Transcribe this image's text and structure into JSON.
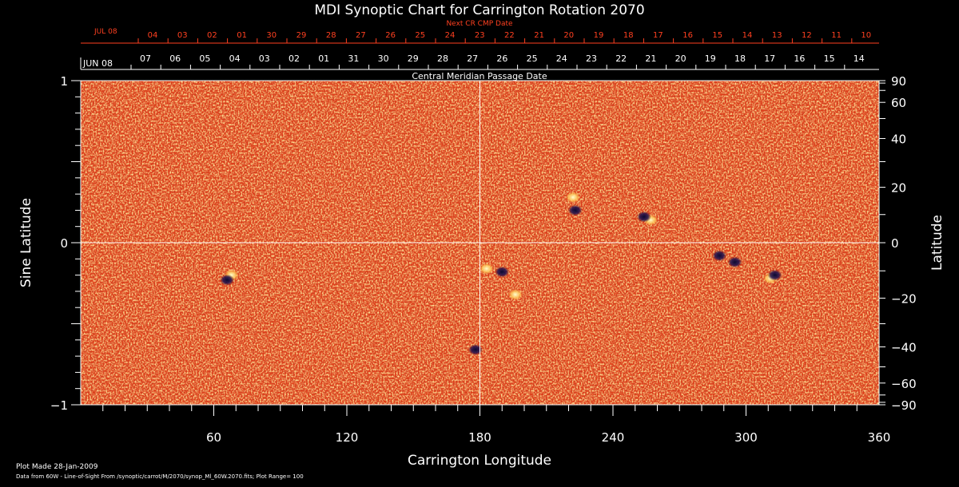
{
  "chart_data": {
    "type": "heatmap",
    "title": "MDI Synoptic Chart for Carrington Rotation 2070",
    "xlabel": "Carrington Longitude",
    "ylabel_left": "Sine Latitude",
    "ylabel_right": "Latitude",
    "top_axis_label": "Central Meridian Passage Date",
    "next_cr_label": "Next CR CMP Date",
    "xlim": [
      0,
      360
    ],
    "ylim": [
      -1,
      1
    ],
    "x_ticks": [
      60,
      120,
      180,
      240,
      300,
      360
    ],
    "y_ticks_left": [
      {
        "value": 1,
        "label": "1"
      },
      {
        "value": 0,
        "label": "0"
      },
      {
        "value": -1,
        "label": "−1"
      }
    ],
    "y_ticks_right": [
      90,
      60,
      40,
      20,
      0,
      -20,
      -40,
      -60,
      -90
    ],
    "y_ticks_right_labels": [
      "90",
      "60",
      "40",
      "20",
      "0",
      "−20",
      "−40",
      "−60",
      "−90"
    ],
    "cmp_month_label": "JUN 08",
    "cmp_dates": [
      "07",
      "06",
      "05",
      "04",
      "03",
      "02",
      "01",
      "31",
      "30",
      "29",
      "28",
      "27",
      "26",
      "25",
      "24",
      "23",
      "22",
      "21",
      "20",
      "19",
      "18",
      "17",
      "16",
      "15",
      "14"
    ],
    "next_cr_month_label": "JUL 08",
    "next_cr_dates": [
      "04",
      "03",
      "02",
      "01",
      "30",
      "29",
      "28",
      "27",
      "26",
      "25",
      "24",
      "23",
      "22",
      "21",
      "20",
      "19",
      "18",
      "17",
      "16",
      "15",
      "14",
      "13",
      "12",
      "11",
      "10"
    ],
    "plot_range": 100,
    "colors": {
      "background": "#000000",
      "map_base": "#e0401a",
      "map_dark": "#a01408",
      "map_bright": "#ffb040",
      "map_white": "#ffffc0",
      "map_negative": "#101040",
      "next_cr_text": "#ff4020",
      "axis": "#ffffff"
    },
    "active_regions": [
      {
        "lon": 222,
        "lat_sin": 0.28,
        "polarity": "positive"
      },
      {
        "lon": 223,
        "lat_sin": 0.2,
        "polarity": "negative"
      },
      {
        "lon": 257,
        "lat_sin": 0.14,
        "polarity": "positive"
      },
      {
        "lon": 254,
        "lat_sin": 0.16,
        "polarity": "negative"
      },
      {
        "lon": 183,
        "lat_sin": -0.16,
        "polarity": "positive"
      },
      {
        "lon": 190,
        "lat_sin": -0.18,
        "polarity": "negative"
      },
      {
        "lon": 311,
        "lat_sin": -0.22,
        "polarity": "positive"
      },
      {
        "lon": 313,
        "lat_sin": -0.2,
        "polarity": "negative"
      },
      {
        "lon": 288,
        "lat_sin": -0.08,
        "polarity": "negative"
      },
      {
        "lon": 295,
        "lat_sin": -0.12,
        "polarity": "negative"
      },
      {
        "lon": 68,
        "lat_sin": -0.2,
        "polarity": "positive"
      },
      {
        "lon": 66,
        "lat_sin": -0.23,
        "polarity": "negative"
      },
      {
        "lon": 196,
        "lat_sin": -0.32,
        "polarity": "positive"
      },
      {
        "lon": 178,
        "lat_sin": -0.66,
        "polarity": "negative"
      }
    ]
  },
  "footer": {
    "plot_made": "Plot Made 28-Jan-2009",
    "data_source": "Data from 60W - Line-of-Sight From /synoptic/carrot/M/2070/synop_Ml_60W.2070.fits; Plot Range=  100"
  }
}
